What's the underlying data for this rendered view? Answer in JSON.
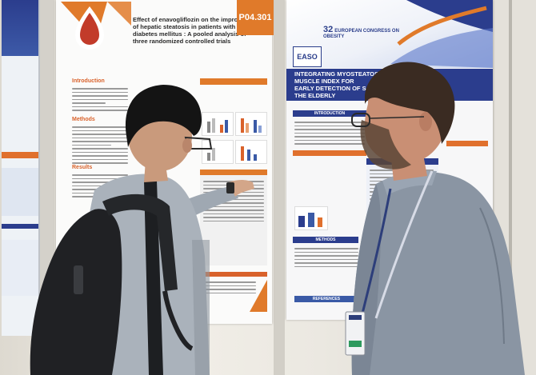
{
  "photo": {
    "description_tags": [
      "poster-session",
      "two-men",
      "conference"
    ]
  },
  "center_poster": {
    "badge": "P04.301",
    "title": "Effect of enavogliflozin on the improvement of hepatic steatosis in patients with type 2 diabetes mellitus : A pooled analysis of three randomized controlled trials",
    "sections": [
      "Introduction",
      "Methods",
      "Results"
    ],
    "accent_color": "#e07a2a"
  },
  "right_poster": {
    "logo_text": "EASO",
    "congress_number": "32",
    "congress_name": "EUROPEAN CONGRESS ON OBESITY",
    "title_line1": "INTEGRATING MYOSTEATOSIS AND SKELETAL MUSCLE INDEX FOR",
    "title_line2": "EARLY DETECTION OF SARCOPENIC OBESITY IN THE ELDERLY",
    "section_heads": [
      "INTRODUCTION",
      "METHODS",
      "REFERENCES"
    ],
    "accent_color": "#2b3d8d"
  }
}
